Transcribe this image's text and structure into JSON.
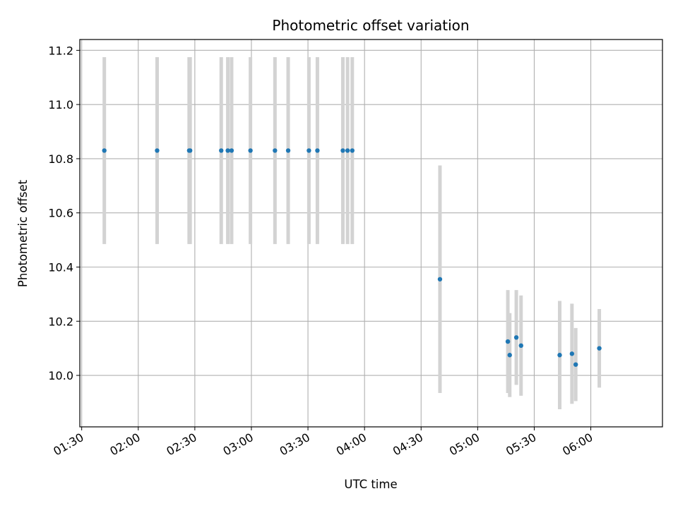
{
  "chart_data": {
    "type": "scatter",
    "title": "Photometric offset variation",
    "xlabel": "UTC time",
    "ylabel": "Photometric offset",
    "x_ticks": [
      "01:30",
      "02:00",
      "02:30",
      "03:00",
      "03:30",
      "04:00",
      "04:30",
      "05:00",
      "05:30",
      "06:00"
    ],
    "y_ticks": [
      "10.0",
      "10.2",
      "10.4",
      "10.6",
      "10.8",
      "11.0",
      "11.2"
    ],
    "xlim": [
      "01:29",
      "06:38"
    ],
    "ylim": [
      9.81,
      11.24
    ],
    "grid": true,
    "colors": {
      "point": "#1f77b4",
      "errorbar": "#d3d3d3",
      "grid": "#b0b0b0"
    },
    "points": [
      {
        "x": "01:42",
        "y": 10.83,
        "err": 0.345
      },
      {
        "x": "02:10",
        "y": 10.83,
        "err": 0.345
      },
      {
        "x": "02:27",
        "y": 10.83,
        "err": 0.345
      },
      {
        "x": "02:27:30",
        "y": 10.83,
        "err": 0.345
      },
      {
        "x": "02:44",
        "y": 10.83,
        "err": 0.345
      },
      {
        "x": "02:47:30",
        "y": 10.83,
        "err": 0.345
      },
      {
        "x": "02:49:30",
        "y": 10.83,
        "err": 0.345
      },
      {
        "x": "02:59:30",
        "y": 10.83,
        "err": 0.345
      },
      {
        "x": "03:12:30",
        "y": 10.83,
        "err": 0.345
      },
      {
        "x": "03:19:30",
        "y": 10.83,
        "err": 0.345
      },
      {
        "x": "03:30:30",
        "y": 10.83,
        "err": 0.345
      },
      {
        "x": "03:35",
        "y": 10.83,
        "err": 0.345
      },
      {
        "x": "03:48:30",
        "y": 10.83,
        "err": 0.345
      },
      {
        "x": "03:51",
        "y": 10.83,
        "err": 0.345
      },
      {
        "x": "03:53:30",
        "y": 10.83,
        "err": 0.345
      },
      {
        "x": "04:40",
        "y": 10.355,
        "err": 0.42
      },
      {
        "x": "05:16",
        "y": 10.125,
        "err": 0.19
      },
      {
        "x": "05:17",
        "y": 10.075,
        "err": 0.155
      },
      {
        "x": "05:20:30",
        "y": 10.14,
        "err": 0.175
      },
      {
        "x": "05:23",
        "y": 10.11,
        "err": 0.185
      },
      {
        "x": "05:43:30",
        "y": 10.075,
        "err": 0.2
      },
      {
        "x": "05:50",
        "y": 10.08,
        "err": 0.185
      },
      {
        "x": "05:52",
        "y": 10.04,
        "err": 0.135
      },
      {
        "x": "06:04:30",
        "y": 10.1,
        "err": 0.145
      }
    ]
  }
}
